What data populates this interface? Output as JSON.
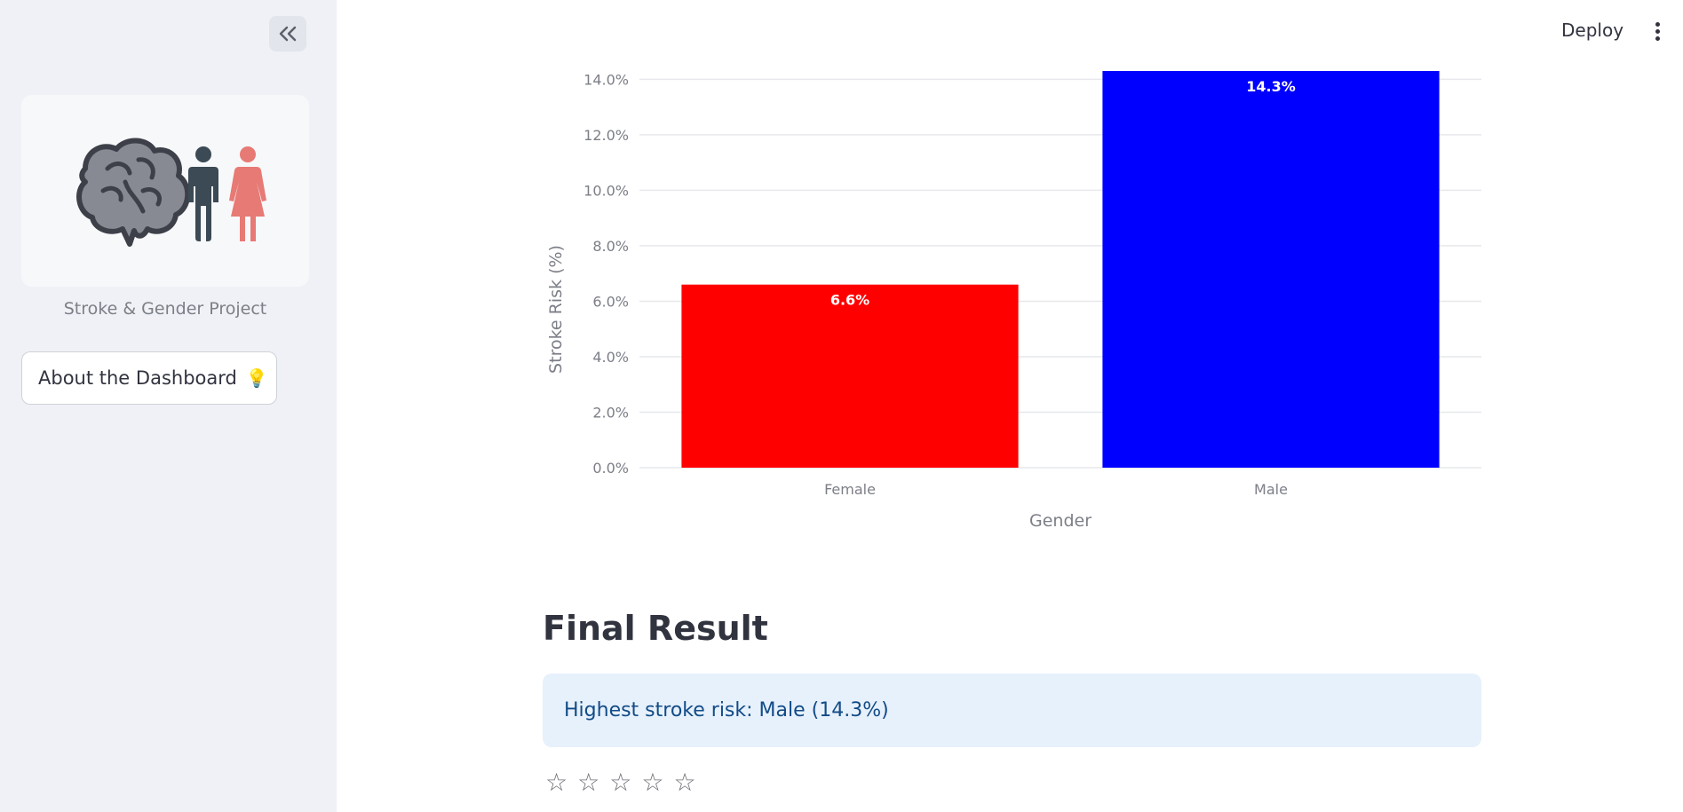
{
  "sidebar": {
    "project_name": "Stroke & Gender Project",
    "about_button": "About the Dashboard",
    "about_icon": "💡"
  },
  "header": {
    "deploy_label": "Deploy"
  },
  "chart_data": {
    "type": "bar",
    "categories": [
      "Female",
      "Male"
    ],
    "values": [
      6.6,
      14.3
    ],
    "data_labels": [
      "6.6%",
      "14.3%"
    ],
    "colors": [
      "#ff0000",
      "#0000ff"
    ],
    "xlabel": "Gender",
    "ylabel": "Stroke Risk (%)",
    "ylim": [
      0,
      14.3
    ],
    "yticks": [
      0,
      2,
      4,
      6,
      8,
      10,
      12,
      14
    ],
    "ytick_labels": [
      "0.0%",
      "2.0%",
      "4.0%",
      "6.0%",
      "8.0%",
      "10.0%",
      "12.0%",
      "14.0%"
    ],
    "grid": true
  },
  "main": {
    "final_title": "Final Result",
    "result_text": "Highest stroke risk: Male (14.3%)",
    "rating": {
      "max": 5,
      "value": 0
    }
  }
}
